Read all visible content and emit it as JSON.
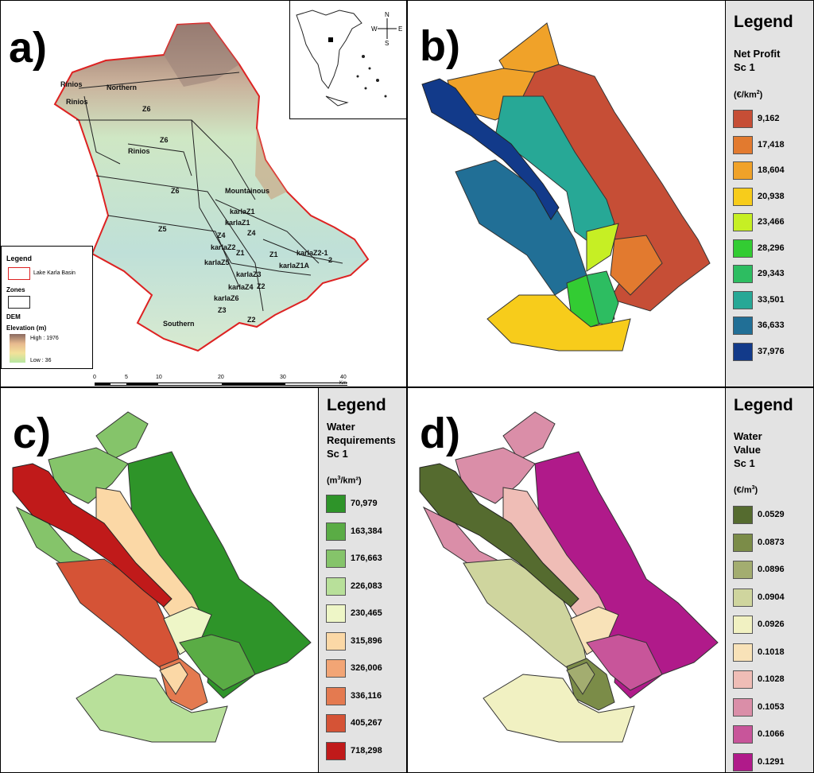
{
  "panels": {
    "a": {
      "letter": "a)",
      "region_labels": [
        "Rinios",
        "Rinios",
        "Northern",
        "Z6",
        "Z6",
        "Rinios",
        "Z6",
        "Mountainous",
        "Z5",
        "karlaZ1",
        "karlaZ1",
        "Z4",
        "Z4",
        "karlaZ2",
        "Z1",
        "karlaZ5",
        "karlaZ2-1",
        "Z1",
        "karlaZ1A",
        "karlaZ3",
        "2",
        "karlaZ4",
        "karlaZ6",
        "Z2",
        "Z3",
        "Southern",
        "Z2"
      ],
      "legend": {
        "title": "Legend",
        "basin_label": "Lake Karla Basin",
        "zones_label": "Zones",
        "dem_label": "DEM",
        "elevation_label": "Elevation (m)",
        "high_label": "High : 1976",
        "low_label": "Low : 36"
      },
      "scale": {
        "ticks": [
          "0",
          "5",
          "10",
          "20",
          "30",
          "40"
        ],
        "unit": "Km"
      },
      "compass": {
        "n": "N",
        "s": "S",
        "e": "E",
        "w": "W"
      }
    },
    "b": {
      "letter": "b)",
      "legend_title": "Legend",
      "subtitle": "Net Profit\nSc 1",
      "unit_base": "(€/km",
      "unit_sup": "2",
      "unit_end": ")",
      "items": [
        {
          "label": "9,162",
          "color": "#c64e36"
        },
        {
          "label": "17,418",
          "color": "#e27a2f"
        },
        {
          "label": "18,604",
          "color": "#f0a229"
        },
        {
          "label": "20,938",
          "color": "#f7cc1b"
        },
        {
          "label": "23,466",
          "color": "#c6ef24"
        },
        {
          "label": "28,296",
          "color": "#33cc33"
        },
        {
          "label": "29,343",
          "color": "#2dbd61"
        },
        {
          "label": "33,501",
          "color": "#27a896"
        },
        {
          "label": "36,633",
          "color": "#216f96"
        },
        {
          "label": "37,976",
          "color": "#123a8a"
        }
      ]
    },
    "c": {
      "letter": "c)",
      "legend_title": "Legend",
      "subtitle": "Water\nRequirements\nSc 1",
      "unit_base": "(m",
      "unit_sup": "3",
      "unit_end": "/km²)",
      "items": [
        {
          "label": "70,979",
          "color": "#2e9429"
        },
        {
          "label": "163,384",
          "color": "#5aac45"
        },
        {
          "label": "176,663",
          "color": "#85c46a"
        },
        {
          "label": "226,083",
          "color": "#b8e09a"
        },
        {
          "label": "230,465",
          "color": "#eef6c7"
        },
        {
          "label": "315,896",
          "color": "#fbd8a6"
        },
        {
          "label": "326,006",
          "color": "#f2a575"
        },
        {
          "label": "336,116",
          "color": "#e47a50"
        },
        {
          "label": "405,267",
          "color": "#d55336"
        },
        {
          "label": "718,298",
          "color": "#c01a1a"
        }
      ]
    },
    "d": {
      "letter": "d)",
      "legend_title": "Legend",
      "subtitle": "Water\nValue\nSc 1",
      "unit_base": "(€/m",
      "unit_sup": "3",
      "unit_end": ")",
      "items": [
        {
          "label": "0.0529",
          "color": "#556b2f"
        },
        {
          "label": "0.0873",
          "color": "#7b8c48"
        },
        {
          "label": "0.0896",
          "color": "#a3ad70"
        },
        {
          "label": "0.0904",
          "color": "#cfd59e"
        },
        {
          "label": "0.0926",
          "color": "#f1f1c2"
        },
        {
          "label": "0.1018",
          "color": "#f8e2b8"
        },
        {
          "label": "0.1028",
          "color": "#efbdb6"
        },
        {
          "label": "0.1053",
          "color": "#da8ea8"
        },
        {
          "label": "0.1066",
          "color": "#c8559a"
        },
        {
          "label": "0.1291",
          "color": "#b01a8a"
        }
      ]
    }
  }
}
